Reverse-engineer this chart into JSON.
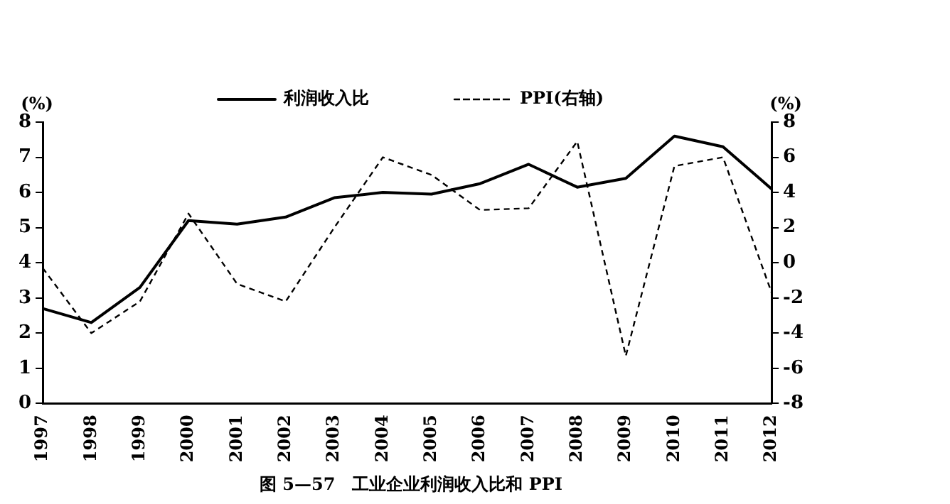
{
  "chart_data": {
    "type": "line",
    "title": "图 5—57　工业企业利润收入比和 PPI",
    "ylabel": "(%)",
    "y2label": "(%)",
    "categories": [
      "1997",
      "1998",
      "1999",
      "2000",
      "2001",
      "2002",
      "2003",
      "2004",
      "2005",
      "2006",
      "2007",
      "2008",
      "2009",
      "2010",
      "2011",
      "2012"
    ],
    "series": [
      {
        "name": "利润收入比",
        "color": "#000000",
        "line_style": "solid",
        "values": [
          2.7,
          2.3,
          3.3,
          5.2,
          5.1,
          5.3,
          5.85,
          6.0,
          5.95,
          6.25,
          6.8,
          6.15,
          6.4,
          7.6,
          7.3,
          6.1
        ]
      },
      {
        "name": "PPI(右轴)",
        "color": "#000000",
        "line_style": "dashed",
        "axis": "y2",
        "values": [
          -0.3,
          -4.0,
          -2.2,
          2.8,
          -1.2,
          -2.2,
          2.0,
          6.0,
          5.0,
          3.0,
          3.1,
          6.9,
          -5.3,
          5.5,
          6.0,
          -1.7
        ]
      }
    ],
    "ylim": [
      0,
      8
    ],
    "yticks": [
      0,
      1,
      2,
      3,
      4,
      5,
      6,
      7,
      8
    ],
    "y2lim": [
      -8,
      8
    ],
    "y2ticks": [
      -8,
      -6,
      -4,
      -2,
      0,
      2,
      4,
      6,
      8
    ],
    "grid": false,
    "legend": "top",
    "marker": "none"
  }
}
